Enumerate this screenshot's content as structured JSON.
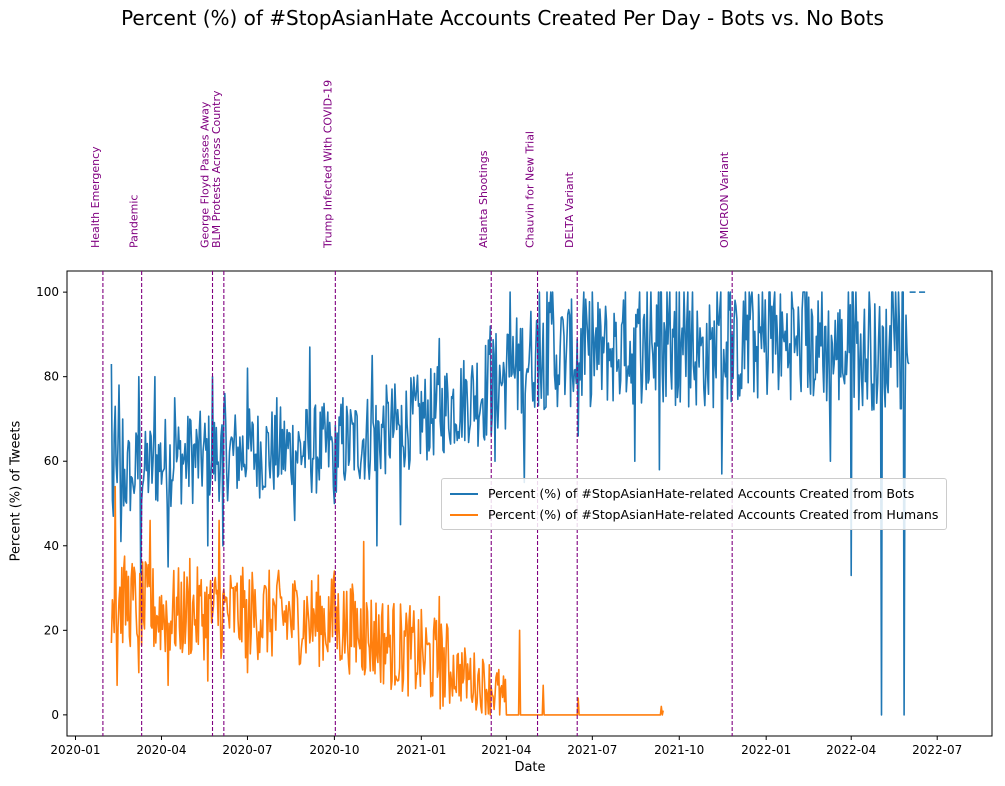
{
  "chart_data": {
    "type": "line",
    "title": "Percent (%) of #StopAsianHate Accounts Created Per Day - Bots vs. No Bots",
    "xlabel": "Date",
    "ylabel": "Percent (%) of Tweets",
    "x_type": "date",
    "xlim": [
      "2019-12-23",
      "2022-08-28"
    ],
    "ylim": [
      -5,
      105
    ],
    "x_ticks": [
      "2020-01",
      "2020-04",
      "2020-07",
      "2020-10",
      "2021-01",
      "2021-04",
      "2021-07",
      "2021-10",
      "2022-01",
      "2022-04",
      "2022-07"
    ],
    "x_tick_dates": [
      "2020-01-01",
      "2020-04-01",
      "2020-07-01",
      "2020-10-01",
      "2021-01-01",
      "2021-04-01",
      "2021-07-01",
      "2021-10-01",
      "2022-01-01",
      "2022-04-01",
      "2022-07-01"
    ],
    "y_ticks": [
      "0",
      "20",
      "40",
      "60",
      "80",
      "100"
    ],
    "y_tick_values": [
      0,
      20,
      40,
      60,
      80,
      100
    ],
    "grid": false,
    "legend_position": "center-right",
    "series": [
      {
        "name": "Percent (%) of #StopAsianHate-related Accounts Created from Bots",
        "color": "#1f77b4",
        "range_key_dates": [
          [
            "2020-02-08",
            55
          ],
          [
            "2020-04-01",
            60
          ],
          [
            "2020-07-01",
            62
          ],
          [
            "2020-10-01",
            63
          ],
          [
            "2021-01-01",
            70
          ],
          [
            "2021-03-20",
            78
          ],
          [
            "2021-05-01",
            85
          ],
          [
            "2021-08-01",
            86
          ],
          [
            "2021-11-01",
            85
          ],
          [
            "2022-01-15",
            88
          ],
          [
            "2022-04-02",
            85
          ]
        ],
        "points": [
          [
            "2020-02-08",
            83
          ],
          [
            "2020-02-10",
            47
          ],
          [
            "2020-02-12",
            73
          ],
          [
            "2020-02-14",
            55
          ],
          [
            "2020-02-16",
            78
          ],
          [
            "2020-02-18",
            41
          ],
          [
            "2020-02-20",
            70
          ],
          [
            "2020-02-25",
            62
          ],
          [
            "2020-03-01",
            56
          ],
          [
            "2020-03-08",
            80
          ],
          [
            "2020-03-10",
            32
          ],
          [
            "2020-03-15",
            67
          ],
          [
            "2020-03-25",
            80
          ],
          [
            "2020-04-08",
            35
          ],
          [
            "2020-04-15",
            75
          ],
          [
            "2020-05-01",
            70
          ],
          [
            "2020-05-20",
            40
          ],
          [
            "2020-05-25",
            80
          ],
          [
            "2020-06-05",
            40
          ],
          [
            "2020-06-07",
            76
          ],
          [
            "2020-07-01",
            82
          ],
          [
            "2020-08-01",
            75
          ],
          [
            "2020-08-20",
            46
          ],
          [
            "2020-09-05",
            87
          ],
          [
            "2020-10-01",
            50
          ],
          [
            "2020-10-10",
            75
          ],
          [
            "2020-11-10",
            85
          ],
          [
            "2020-11-15",
            40
          ],
          [
            "2020-12-10",
            45
          ],
          [
            "2021-01-20",
            89
          ],
          [
            "2021-03-15",
            92
          ],
          [
            "2021-03-20",
            60
          ],
          [
            "2021-04-05",
            100
          ],
          [
            "2021-04-20",
            55
          ],
          [
            "2021-05-20",
            100
          ],
          [
            "2021-06-16",
            66
          ],
          [
            "2021-07-01",
            100
          ],
          [
            "2021-08-15",
            60
          ],
          [
            "2021-09-01",
            100
          ],
          [
            "2021-09-10",
            58
          ],
          [
            "2021-10-15",
            100
          ],
          [
            "2021-11-15",
            57
          ],
          [
            "2021-12-10",
            100
          ],
          [
            "2022-01-10",
            100
          ],
          [
            "2022-02-10",
            100
          ],
          [
            "2022-03-01",
            100
          ],
          [
            "2022-03-10",
            60
          ],
          [
            "2022-04-01",
            33
          ],
          [
            "2022-04-03",
            100
          ],
          [
            "2022-05-03",
            0
          ],
          [
            "2022-05-27",
            0
          ],
          [
            "2022-06-01",
            83
          ]
        ]
      },
      {
        "name": "Percent (%) of #StopAsianHate-related Accounts Created from Humans",
        "color": "#ff7f0e",
        "range_key_dates": [
          [
            "2020-02-08",
            28
          ],
          [
            "2020-04-01",
            24
          ],
          [
            "2020-07-01",
            24
          ],
          [
            "2020-10-01",
            22
          ],
          [
            "2021-01-01",
            14
          ],
          [
            "2021-03-20",
            6
          ],
          [
            "2021-04-01",
            2
          ],
          [
            "2021-09-13",
            0
          ]
        ],
        "points": [
          [
            "2020-02-08",
            17
          ],
          [
            "2020-02-12",
            54
          ],
          [
            "2020-02-14",
            7
          ],
          [
            "2020-03-08",
            10
          ],
          [
            "2020-03-20",
            46
          ],
          [
            "2020-04-08",
            7
          ],
          [
            "2020-05-01",
            37
          ],
          [
            "2020-05-20",
            8
          ],
          [
            "2020-06-01",
            46
          ],
          [
            "2020-07-01",
            10
          ],
          [
            "2020-10-01",
            34
          ],
          [
            "2020-11-01",
            41
          ],
          [
            "2020-12-01",
            8
          ],
          [
            "2021-01-20",
            28
          ],
          [
            "2021-03-25",
            0
          ],
          [
            "2021-04-15",
            20
          ],
          [
            "2021-05-10",
            7
          ],
          [
            "2021-06-16",
            4
          ],
          [
            "2021-09-12",
            2
          ],
          [
            "2021-09-14",
            1
          ]
        ]
      }
    ],
    "annotations": [
      {
        "label": "Health Emergency",
        "date": "2020-01-30"
      },
      {
        "label": "Pandemic",
        "date": "2020-03-11"
      },
      {
        "label": "George Floyd Passes Away",
        "date": "2020-05-25"
      },
      {
        "label": "BLM Protests Across Country",
        "date": "2020-06-06"
      },
      {
        "label": "Trump Infected With COVID-19",
        "date": "2020-10-02"
      },
      {
        "label": "Atlanta Shootings",
        "date": "2021-03-16"
      },
      {
        "label": "Chauvin for New Trial",
        "date": "2021-05-04"
      },
      {
        "label": "DELTA Variant",
        "date": "2021-06-15"
      },
      {
        "label": "OMICRON Variant",
        "date": "2021-11-26"
      }
    ],
    "annotation_color": "#800080"
  }
}
